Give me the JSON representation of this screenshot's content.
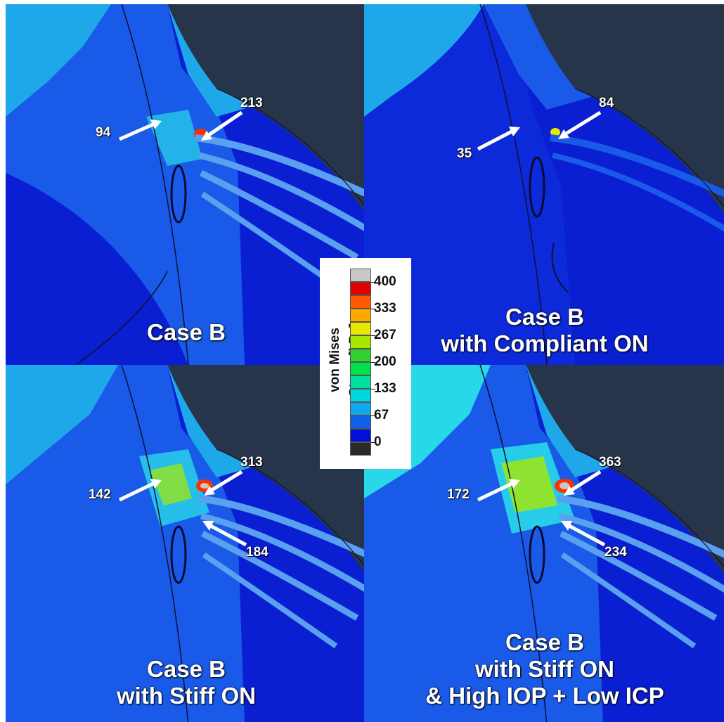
{
  "panels": [
    {
      "caption_lines": [
        "Case B"
      ],
      "values": [
        "94",
        "213"
      ]
    },
    {
      "caption_lines": [
        "Case B",
        "with Compliant ON"
      ],
      "values": [
        "35",
        "84"
      ]
    },
    {
      "caption_lines": [
        "Case B",
        "with Stiff ON"
      ],
      "values": [
        "142",
        "313",
        "184"
      ]
    },
    {
      "caption_lines": [
        "Case B",
        "with Stiff ON",
        "& High IOP + Low ICP"
      ],
      "values": [
        "172",
        "363",
        "234"
      ]
    }
  ],
  "legend": {
    "title": "von Mises Stress[kPa]",
    "tick_labels": [
      "400",
      "333",
      "267",
      "200",
      "133",
      "67",
      "0"
    ],
    "colors": [
      "#c8c8c8",
      "#e00000",
      "#ff5a00",
      "#ffa800",
      "#e8e800",
      "#a8e800",
      "#30d030",
      "#00e04a",
      "#00e0a0",
      "#00d8e0",
      "#10a8f0",
      "#1060e8",
      "#0010d8",
      "#2a2a2a"
    ]
  },
  "colors": {
    "background_blue": "#0a1ed2",
    "mid_blue": "#1a5ae8",
    "light_blue": "#1ea8ea",
    "cyan": "#28d8e8",
    "dark_slate": "#27354a",
    "hot_spot": "#ff3000"
  }
}
